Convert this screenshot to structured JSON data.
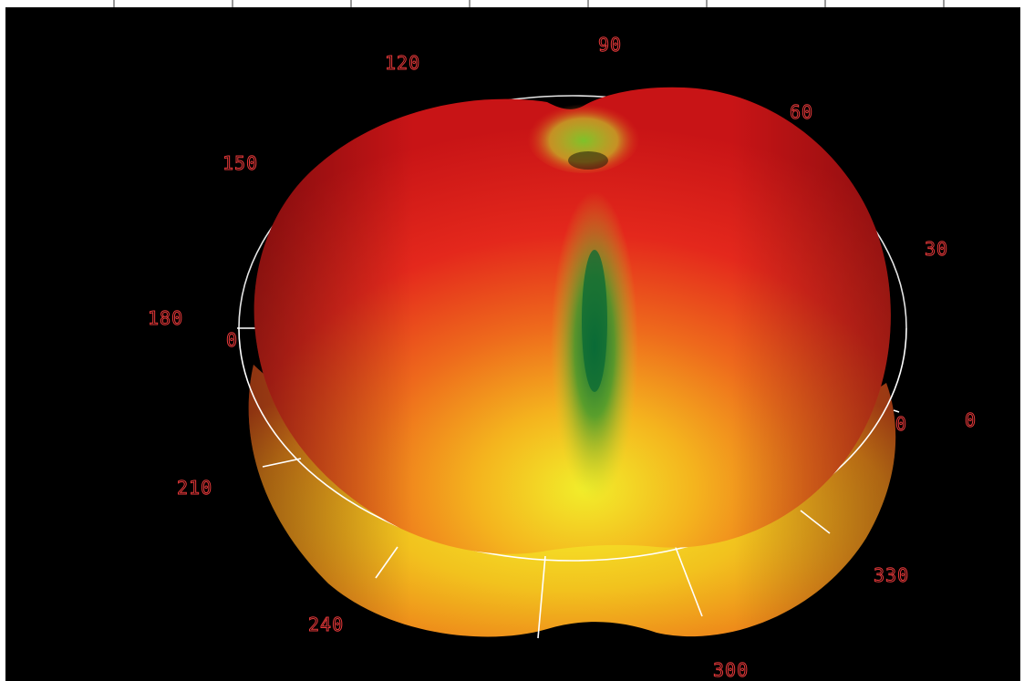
{
  "figure": {
    "type": "3d-polar-radiation-pattern",
    "angle_labels": [
      "0",
      "30",
      "60",
      "90",
      "120",
      "150",
      "180",
      "210",
      "240",
      "300",
      "330"
    ],
    "ring_zero_labels": [
      "0",
      "0"
    ]
  },
  "colors": {
    "background": "#000000",
    "surface_high": "#e01e1e",
    "surface_mid": "#f07a1a",
    "surface_low": "#e8e21a",
    "surface_null": "#0a7a3a",
    "label": "#e8393a",
    "ring": "#ffffff",
    "frame": "#ffffff"
  }
}
